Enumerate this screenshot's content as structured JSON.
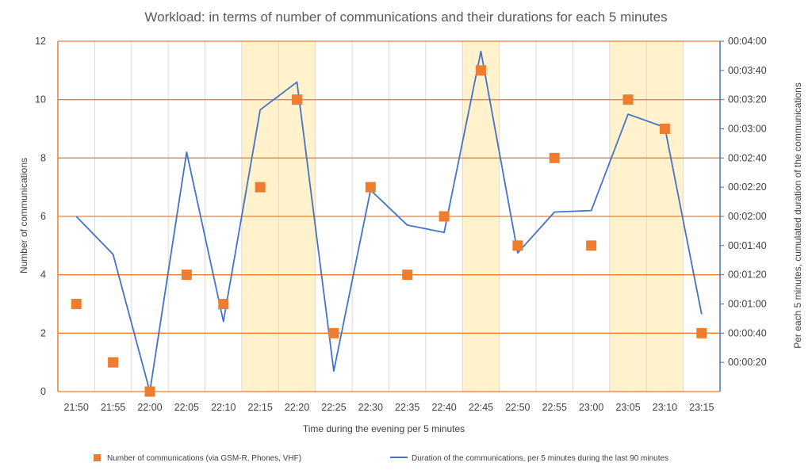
{
  "chart_data": {
    "type": "line",
    "title": "Workload: in terms of number of communications and their durations for each 5 minutes",
    "xlabel": "Time during the evening per 5 minutes",
    "ylabel_left": "Number of communications",
    "ylabel_right": "Per each 5 minutes, cumulated duration of the communications",
    "categories": [
      "21:50",
      "21:55",
      "22:00",
      "22:05",
      "22:10",
      "22:15",
      "22:20",
      "22:25",
      "22:30",
      "22:35",
      "22:40",
      "22:45",
      "22:50",
      "22:55",
      "23:00",
      "23:05",
      "23:10",
      "23:15"
    ],
    "ylim_left": [
      0,
      12
    ],
    "yticks_left": [
      "0",
      "2",
      "4",
      "6",
      "8",
      "10",
      "12"
    ],
    "ylim_right_seconds": [
      0,
      240
    ],
    "yticks_right": [
      "00:00:20",
      "00:00:40",
      "00:01:00",
      "00:01:20",
      "00:01:40",
      "00:02:00",
      "00:02:20",
      "00:02:40",
      "00:03:00",
      "00:03:20",
      "00:03:40",
      "00:04:00"
    ],
    "yticks_right_seconds": [
      20,
      40,
      60,
      80,
      100,
      120,
      140,
      160,
      180,
      200,
      220,
      240
    ],
    "highlight_bands": [
      {
        "from": "22:15",
        "to": "22:20"
      },
      {
        "from": "22:45",
        "to": "22:45"
      },
      {
        "from": "23:05",
        "to": "23:10"
      }
    ],
    "series": [
      {
        "name": "Number of communications (via GSM-R, Phones, VHF)",
        "kind": "scatter",
        "axis": "left",
        "marker": "square",
        "color": "#ED7D31",
        "values": [
          3,
          1,
          0,
          4,
          3,
          7,
          10,
          2,
          7,
          4,
          6,
          11,
          5,
          8,
          5,
          10,
          9,
          2
        ]
      },
      {
        "name": "Duration of the communications, per 5 minutes during the last 90 minutes",
        "kind": "line",
        "axis": "right",
        "color": "#4472C4",
        "values_seconds": [
          120,
          94,
          0,
          164,
          48,
          193,
          212,
          14,
          138,
          114,
          109,
          233,
          95,
          123,
          124,
          190,
          181,
          53
        ]
      }
    ],
    "grid": {
      "horizontal_color": "#ED7D31",
      "vertical_color": "#D9D9D9"
    },
    "highlight_color": "#FFF2CC",
    "legend_position": "bottom"
  }
}
